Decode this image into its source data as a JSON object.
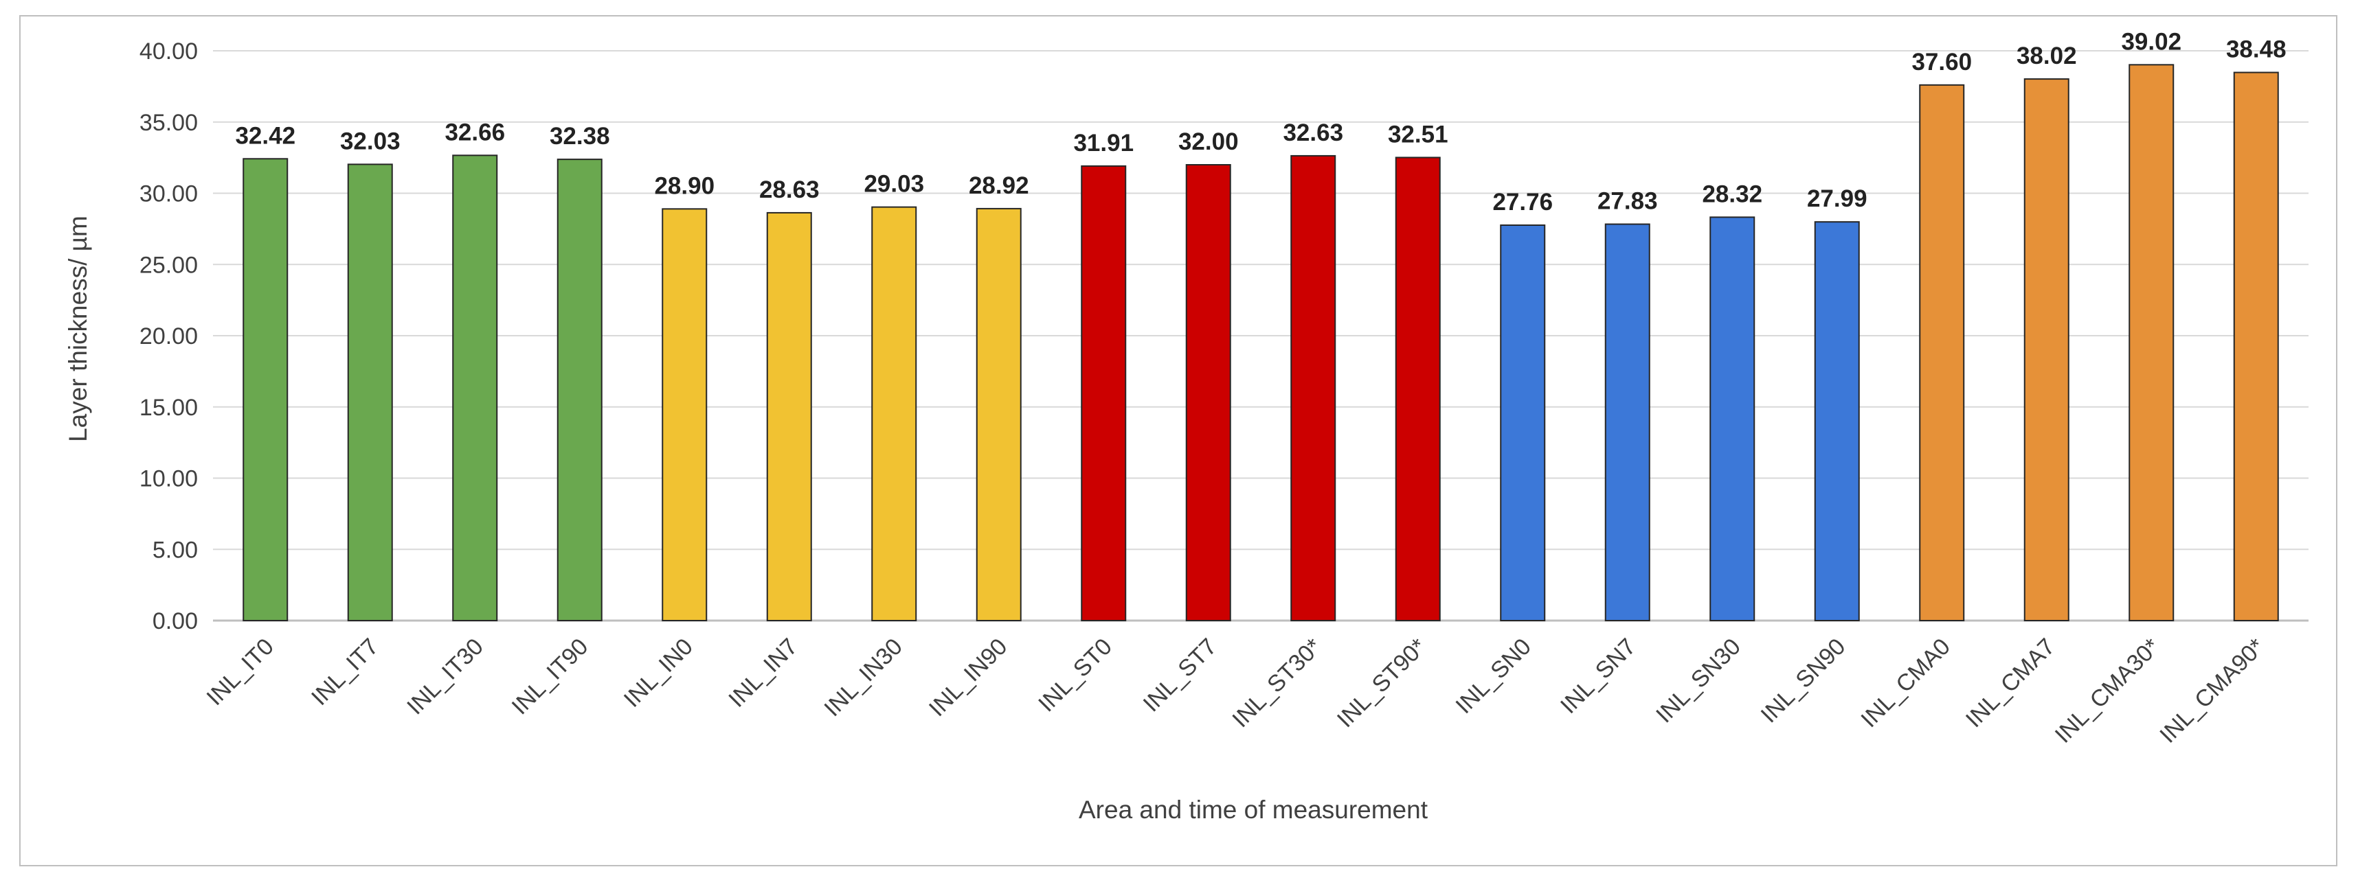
{
  "chart_data": {
    "type": "bar",
    "title": "",
    "xlabel": "Area and time of measurement",
    "ylabel": "Layer thickness/ µm",
    "ylim": [
      0,
      40
    ],
    "yticks": [
      "0.00",
      "5.00",
      "10.00",
      "15.00",
      "20.00",
      "25.00",
      "30.00",
      "35.00",
      "40.00"
    ],
    "ytick_values": [
      0,
      5,
      10,
      15,
      20,
      25,
      30,
      35,
      40
    ],
    "grid": "horizontal",
    "legend": "none",
    "categories": [
      "INL_IT0",
      "INL_IT7",
      "INL_IT30",
      "INL_IT90",
      "INL_IN0",
      "INL_IN7",
      "INL_IN30",
      "INL_IN90",
      "INL_ST0",
      "INL_ST7",
      "INL_ST30*",
      "INL_ST90*",
      "INL_SN0",
      "INL_SN7",
      "INL_SN30",
      "INL_SN90",
      "INL_CMA0",
      "INL_CMA7",
      "INL_CMA30*",
      "INL_CMA90*"
    ],
    "values": [
      32.42,
      32.03,
      32.66,
      32.38,
      28.9,
      28.63,
      29.03,
      28.92,
      31.91,
      32.0,
      32.63,
      32.51,
      27.76,
      27.83,
      28.32,
      27.99,
      37.6,
      38.02,
      39.02,
      38.48
    ],
    "value_labels": [
      "32.42",
      "32.03",
      "32.66",
      "32.38",
      "28.90",
      "28.63",
      "29.03",
      "28.92",
      "31.91",
      "32.00",
      "32.63",
      "32.51",
      "27.76",
      "27.83",
      "28.32",
      "27.99",
      "37.60",
      "38.02",
      "39.02",
      "38.48"
    ],
    "bar_colors": [
      "#6aa84f",
      "#6aa84f",
      "#6aa84f",
      "#6aa84f",
      "#f1c232",
      "#f1c232",
      "#f1c232",
      "#f1c232",
      "#cc0000",
      "#cc0000",
      "#cc0000",
      "#cc0000",
      "#3c78d8",
      "#3c78d8",
      "#3c78d8",
      "#3c78d8",
      "#e69138",
      "#e69138",
      "#e69138",
      "#e69138"
    ],
    "grid_color": "#d9d9d9",
    "axis_color": "#bfbfbf"
  }
}
